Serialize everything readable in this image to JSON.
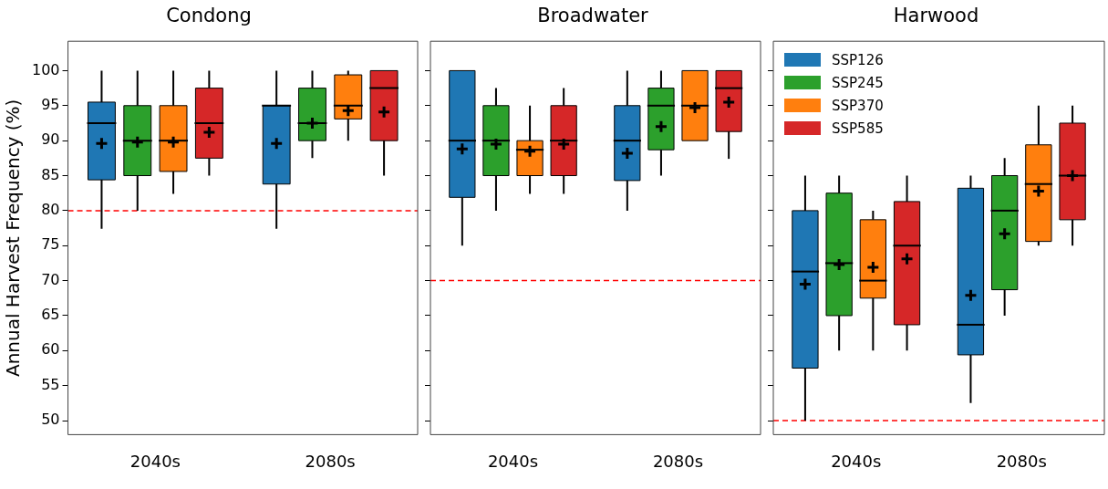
{
  "chart_data": [
    {
      "type": "box",
      "title": "Condong",
      "ylabel": "Annual Harvest Frequency (%)",
      "categories": [
        "2040s",
        "2080s"
      ],
      "ylim": [
        48,
        104.2
      ],
      "yticks": [
        50,
        55,
        60,
        65,
        70,
        75,
        80,
        85,
        90,
        95,
        100
      ],
      "marker": "cross",
      "ref_lines": [
        {
          "axis": "y",
          "value": 80,
          "color": "#ff0000",
          "line_style": "dashed"
        }
      ],
      "series": [
        {
          "color": "#1f77b4",
          "boxes": [
            {
              "low": 77.4,
              "q1": 84.4,
              "median": 92.5,
              "q3": 95.5,
              "high": 100,
              "mean": 89.6
            },
            {
              "low": 77.4,
              "q1": 83.8,
              "median": 95,
              "q3": 95,
              "high": 100,
              "mean": 89.6
            }
          ]
        },
        {
          "color": "#2ca02c",
          "boxes": [
            {
              "low": 80,
              "q1": 85,
              "median": 90,
              "q3": 95,
              "high": 100,
              "mean": 89.8
            },
            {
              "low": 87.5,
              "q1": 90,
              "median": 92.5,
              "q3": 97.5,
              "high": 100,
              "mean": 92.5
            }
          ]
        },
        {
          "color": "#ff7f0e",
          "boxes": [
            {
              "low": 82.4,
              "q1": 85.6,
              "median": 90,
              "q3": 95,
              "high": 100,
              "mean": 89.8
            },
            {
              "low": 90,
              "q1": 93.1,
              "median": 95,
              "q3": 99.4,
              "high": 100,
              "mean": 94.3
            }
          ]
        },
        {
          "color": "#d62728",
          "boxes": [
            {
              "low": 85,
              "q1": 87.5,
              "median": 92.5,
              "q3": 97.5,
              "high": 100,
              "mean": 91.2
            },
            {
              "low": 85,
              "q1": 90,
              "median": 97.5,
              "q3": 100,
              "high": 100,
              "mean": 94.1
            }
          ]
        }
      ]
    },
    {
      "type": "box",
      "title": "Broadwater",
      "categories": [
        "2040s",
        "2080s"
      ],
      "ylim": [
        48,
        104.2
      ],
      "yticks": [
        50,
        55,
        60,
        65,
        70,
        75,
        80,
        85,
        90,
        95,
        100
      ],
      "tick_labels": "x",
      "marker": "cross",
      "ref_lines": [
        {
          "axis": "y",
          "value": 70,
          "color": "#ff0000",
          "line_style": "dashed"
        }
      ],
      "series": [
        {
          "color": "#1f77b4",
          "boxes": [
            {
              "low": 75,
              "q1": 81.9,
              "median": 90,
              "q3": 100,
              "high": 100,
              "mean": 88.8
            },
            {
              "low": 80,
              "q1": 84.3,
              "median": 90,
              "q3": 95,
              "high": 100,
              "mean": 88.2
            }
          ]
        },
        {
          "color": "#2ca02c",
          "boxes": [
            {
              "low": 80,
              "q1": 85,
              "median": 90,
              "q3": 95,
              "high": 97.5,
              "mean": 89.5
            },
            {
              "low": 85,
              "q1": 88.7,
              "median": 95,
              "q3": 97.5,
              "high": 100,
              "mean": 92
            }
          ]
        },
        {
          "color": "#ff7f0e",
          "boxes": [
            {
              "low": 82.4,
              "q1": 85,
              "median": 88.7,
              "q3": 90,
              "high": 95,
              "mean": 88.5
            },
            {
              "low": 90,
              "q1": 90,
              "median": 95,
              "q3": 100,
              "high": 100,
              "mean": 94.7
            }
          ]
        },
        {
          "color": "#d62728",
          "boxes": [
            {
              "low": 82.4,
              "q1": 85,
              "median": 90,
              "q3": 95,
              "high": 97.5,
              "mean": 89.5
            },
            {
              "low": 87.4,
              "q1": 91.3,
              "median": 97.5,
              "q3": 100,
              "high": 100,
              "mean": 95.5
            }
          ]
        }
      ]
    },
    {
      "type": "box",
      "title": "Harwood",
      "categories": [
        "2040s",
        "2080s"
      ],
      "ylim": [
        48,
        104.2
      ],
      "yticks": [
        50,
        55,
        60,
        65,
        70,
        75,
        80,
        85,
        90,
        95,
        100
      ],
      "tick_labels": "x",
      "marker": "cross",
      "legend": "top left",
      "ref_lines": [
        {
          "axis": "y",
          "value": 50,
          "color": "#ff0000",
          "line_style": "dashed"
        }
      ],
      "series": [
        {
          "name": "SSP126",
          "color": "#1f77b4",
          "boxes": [
            {
              "low": 50,
              "q1": 57.5,
              "median": 71.3,
              "q3": 80,
              "high": 85,
              "mean": 69.5
            },
            {
              "low": 52.5,
              "q1": 59.4,
              "median": 63.7,
              "q3": 83.2,
              "high": 85,
              "mean": 67.9
            }
          ]
        },
        {
          "name": "SSP245",
          "color": "#2ca02c",
          "boxes": [
            {
              "low": 60,
              "q1": 65,
              "median": 72.5,
              "q3": 82.5,
              "high": 85,
              "mean": 72.3
            },
            {
              "low": 65,
              "q1": 68.7,
              "median": 80,
              "q3": 85,
              "high": 87.5,
              "mean": 76.7
            }
          ]
        },
        {
          "name": "SSP370",
          "color": "#ff7f0e",
          "boxes": [
            {
              "low": 60,
              "q1": 67.5,
              "median": 70,
              "q3": 78.7,
              "high": 80,
              "mean": 71.9
            },
            {
              "low": 75,
              "q1": 75.6,
              "median": 83.8,
              "q3": 89.4,
              "high": 95,
              "mean": 82.8
            }
          ]
        },
        {
          "name": "SSP585",
          "color": "#d62728",
          "boxes": [
            {
              "low": 60,
              "q1": 63.7,
              "median": 75,
              "q3": 81.3,
              "high": 85,
              "mean": 73.1
            },
            {
              "low": 75,
              "q1": 78.7,
              "median": 85,
              "q3": 92.5,
              "high": 95,
              "mean": 85
            }
          ]
        }
      ]
    }
  ]
}
